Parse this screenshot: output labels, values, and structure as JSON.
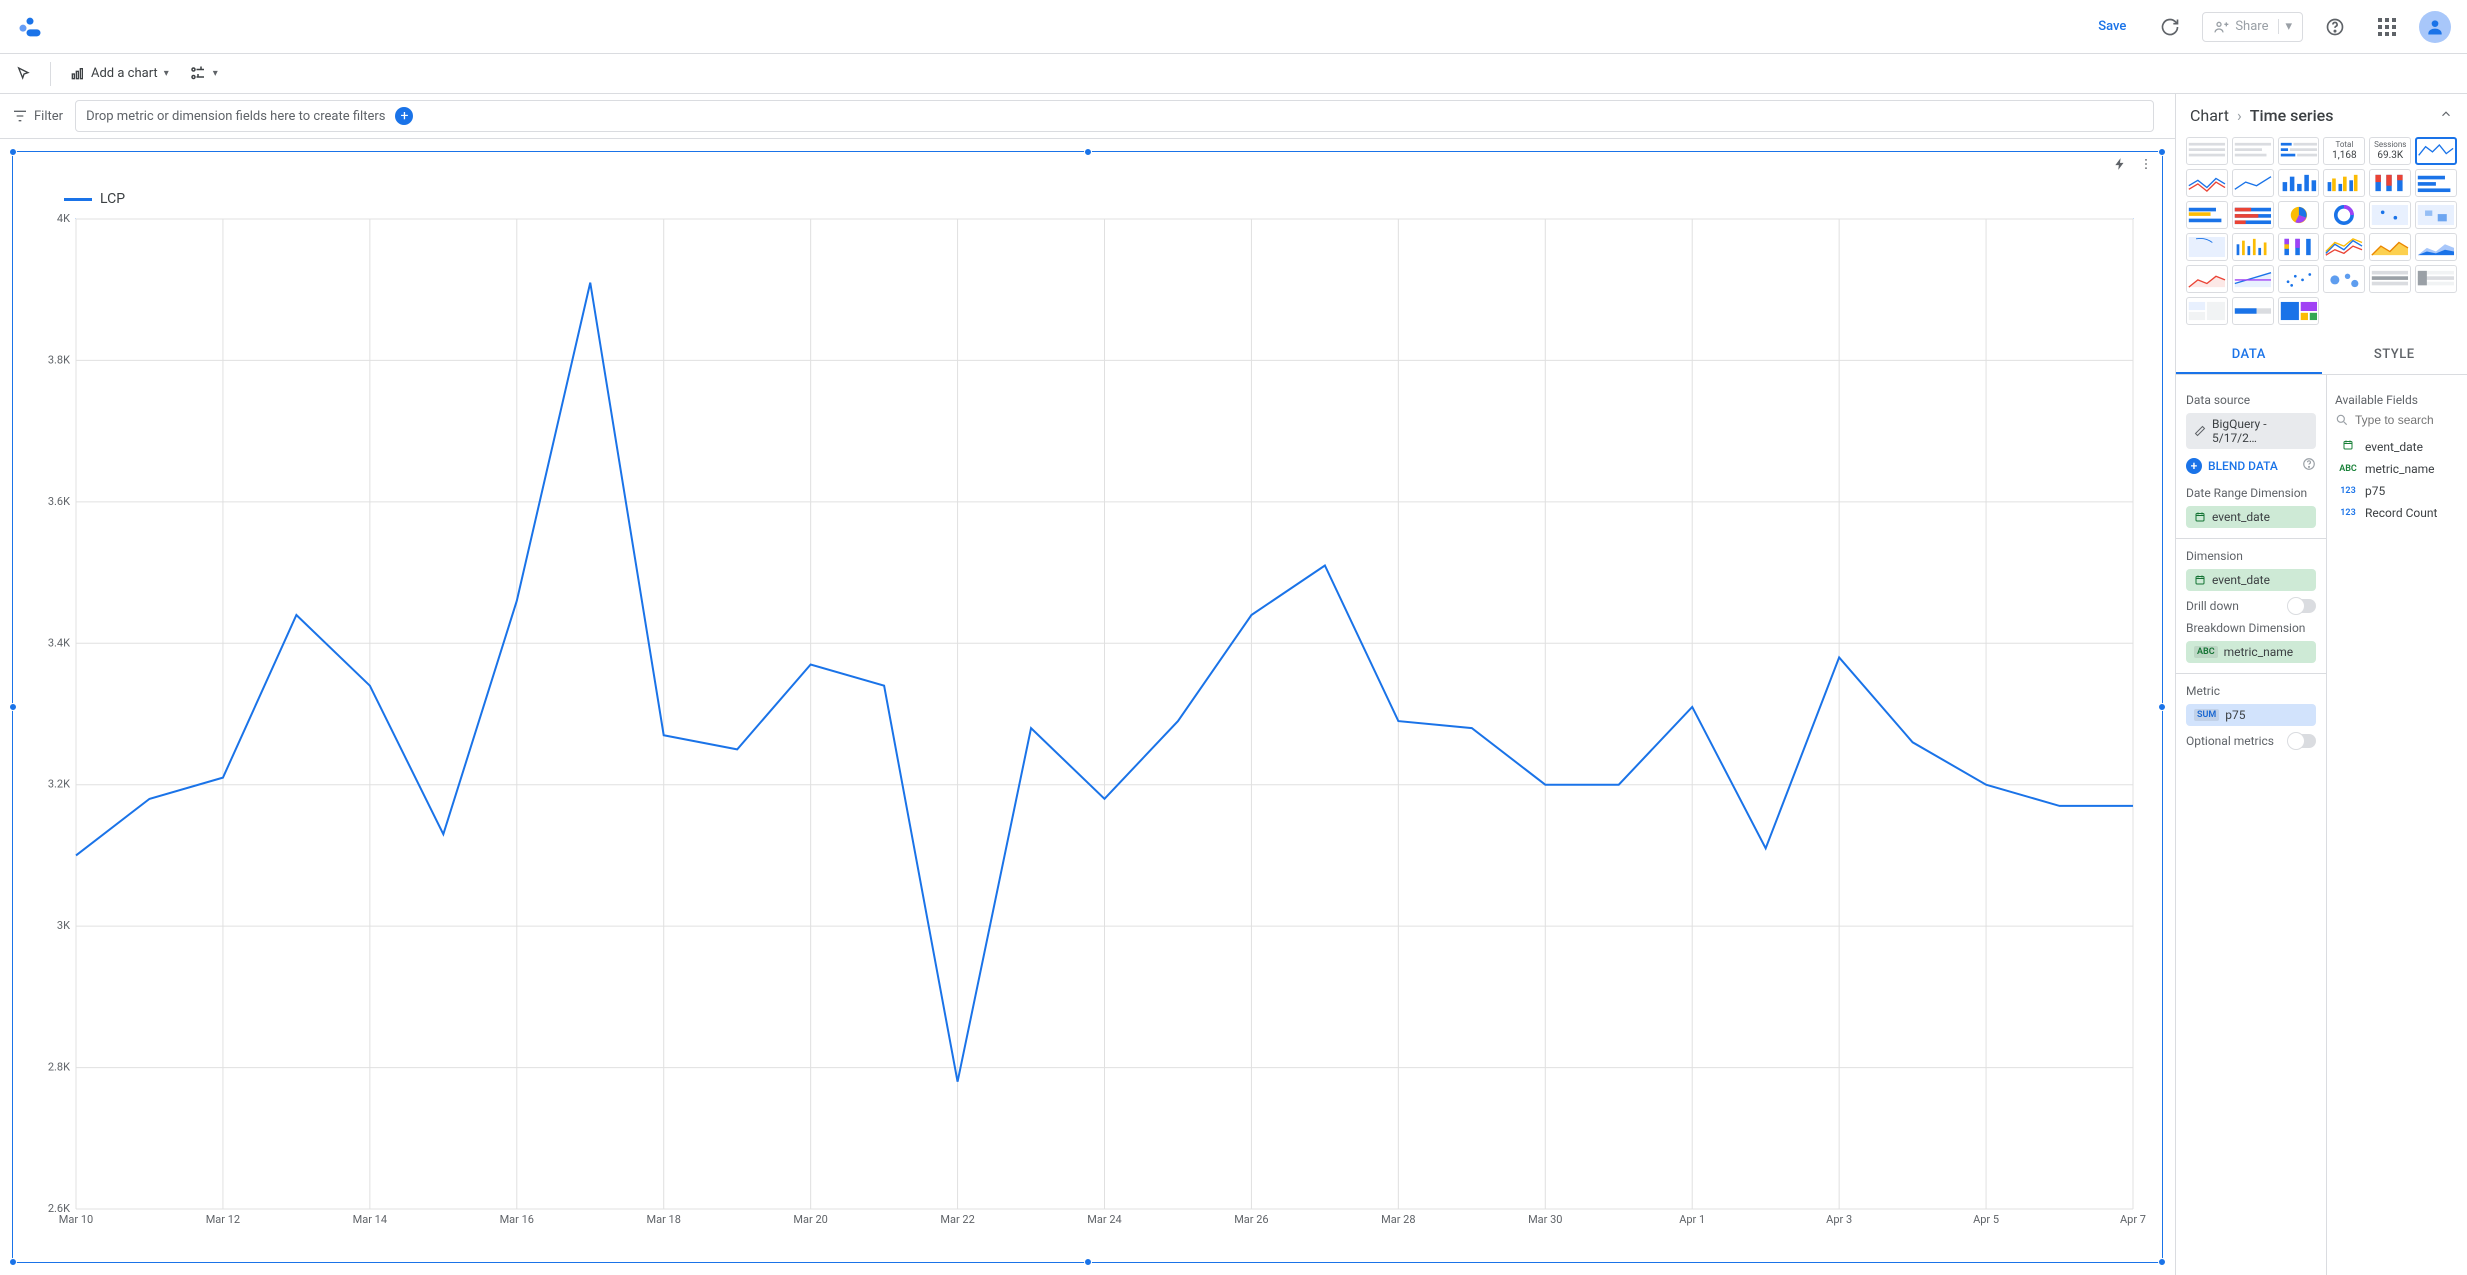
{
  "header": {
    "save_label": "Save",
    "share_label": "Share"
  },
  "toolbar": {
    "add_chart_label": "Add a chart"
  },
  "filter_bar": {
    "filter_label": "Filter",
    "placeholder": "Drop metric or dimension fields here to create filters"
  },
  "chart": {
    "type": "line",
    "legend_label": "LCP",
    "line_color": "#1a73e8",
    "grid_color": "#e0e0e0",
    "plot_border_color": "#1a73e8",
    "background_color": "#ffffff",
    "ylim": [
      2600,
      4000
    ],
    "yticks": [
      2600,
      2800,
      3000,
      3200,
      3400,
      3600,
      3800,
      4000
    ],
    "ytick_labels": [
      "2.6K",
      "2.8K",
      "3K",
      "3.2K",
      "3.4K",
      "3.6K",
      "3.8K",
      "4K"
    ],
    "x_labels": [
      "Mar 10",
      "Mar 12",
      "Mar 14",
      "Mar 16",
      "Mar 18",
      "Mar 20",
      "Mar 22",
      "Mar 24",
      "Mar 26",
      "Mar 28",
      "Mar 30",
      "Apr 1",
      "Apr 3",
      "Apr 5",
      "Apr 7"
    ],
    "x_dates": [
      "Mar 10",
      "Mar 11",
      "Mar 12",
      "Mar 13",
      "Mar 14",
      "Mar 15",
      "Mar 16",
      "Mar 17",
      "Mar 18",
      "Mar 19",
      "Mar 20",
      "Mar 21",
      "Mar 22",
      "Mar 23",
      "Mar 24",
      "Mar 25",
      "Mar 26",
      "Mar 27",
      "Mar 28",
      "Mar 29",
      "Mar 30",
      "Mar 31",
      "Apr 1",
      "Apr 2",
      "Apr 3",
      "Apr 4",
      "Apr 5",
      "Apr 6",
      "Apr 7"
    ],
    "values": [
      3100,
      3180,
      3210,
      3440,
      3340,
      3130,
      3460,
      3910,
      3270,
      3250,
      3370,
      3340,
      2780,
      3280,
      3180,
      3290,
      3440,
      3510,
      3290,
      3280,
      3200,
      3200,
      3310,
      3110,
      3380,
      3260,
      3200,
      3170,
      3170
    ],
    "axis_font_size": 11,
    "line_width": 2
  },
  "right_panel": {
    "breadcrumb_root": "Chart",
    "breadcrumb_current": "Time series",
    "scorecards": {
      "total_label": "Total",
      "total_value": "1,168",
      "sessions_label": "Sessions",
      "sessions_value": "69.3K"
    },
    "tabs": {
      "data": "DATA",
      "style": "STYLE"
    },
    "data_source_label": "Data source",
    "data_source_value": "BigQuery - 5/17/2…",
    "blend_label": "BLEND DATA",
    "date_range_label": "Date Range Dimension",
    "date_range_field": "event_date",
    "dimension_label": "Dimension",
    "dimension_field": "event_date",
    "drill_down_label": "Drill down",
    "breakdown_label": "Breakdown Dimension",
    "breakdown_field": "metric_name",
    "metric_label": "Metric",
    "metric_agg": "SUM",
    "metric_field": "p75",
    "optional_metrics_label": "Optional metrics",
    "available_fields_label": "Available Fields",
    "search_placeholder": "Type to search",
    "fields": [
      {
        "type": "date",
        "label": "event_date"
      },
      {
        "type": "abc",
        "label": "metric_name"
      },
      {
        "type": "num",
        "label": "p75"
      },
      {
        "type": "num",
        "label": "Record Count"
      }
    ]
  }
}
